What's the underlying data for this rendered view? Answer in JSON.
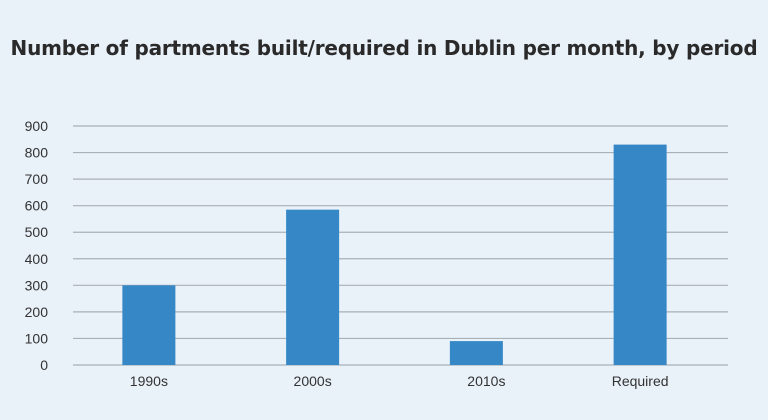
{
  "chart_data": {
    "type": "bar",
    "title": "Number of partments built/required in Dublin per month, by period",
    "categories": [
      "1990s",
      "2000s",
      "2010s",
      "Required"
    ],
    "values": [
      300,
      585,
      90,
      830
    ],
    "xlabel": "",
    "ylabel": "",
    "ylim": [
      0,
      900
    ],
    "yticks": [
      "0",
      "100",
      "200",
      "300",
      "400",
      "500",
      "600",
      "700",
      "800",
      "900"
    ],
    "grid": true,
    "bar_color": "#3587c6",
    "grid_color": "#a9b0b8"
  }
}
